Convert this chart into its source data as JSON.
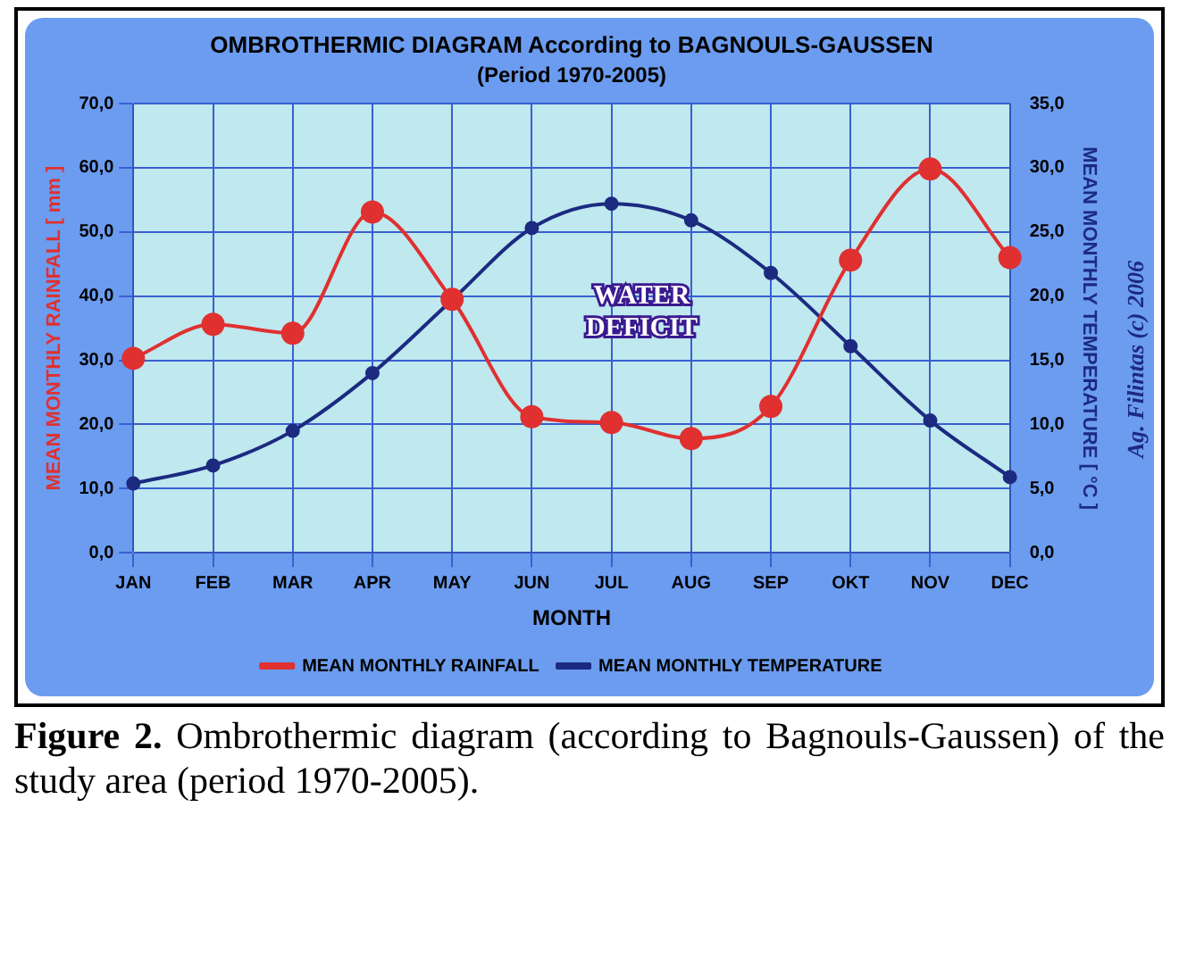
{
  "chart_data": {
    "type": "line",
    "title": "OMBROTHERMIC DIAGRAM According to BAGNOULS-GAUSSEN",
    "subtitle": "(Period 1970-2005)",
    "xlabel": "MONTH",
    "ylabel": "MEAN MONTHLY RAINFALL [ mm ]",
    "y2label": "MEAN MONTHLY TEMPERATURE [ °C ]",
    "categories": [
      "JAN",
      "FEB",
      "MAR",
      "APR",
      "MAY",
      "JUN",
      "JUL",
      "AUG",
      "SEP",
      "OKT",
      "NOV",
      "DEC"
    ],
    "series": [
      {
        "name": "MEAN MONTHLY RAINFALL",
        "color": "#e03030",
        "values": [
          30.3,
          35.6,
          34.2,
          53.1,
          39.5,
          21.2,
          20.3,
          17.8,
          22.8,
          45.6,
          59.8,
          46.0
        ]
      },
      {
        "name": "MEAN MONTHLY TEMPERATURE",
        "color": "#1c2a80",
        "axis": "y2",
        "values": [
          5.4,
          6.8,
          9.5,
          14.0,
          19.7,
          25.3,
          27.2,
          25.9,
          21.8,
          16.1,
          10.3,
          5.9
        ]
      }
    ],
    "ylim": [
      0,
      70
    ],
    "yticks": [
      {
        "value": 0,
        "label": "0,0"
      },
      {
        "value": 10,
        "label": "10,0"
      },
      {
        "value": 20,
        "label": "20,0"
      },
      {
        "value": 30,
        "label": "30,0"
      },
      {
        "value": 40,
        "label": "40,0"
      },
      {
        "value": 50,
        "label": "50,0"
      },
      {
        "value": 60,
        "label": "60,0"
      },
      {
        "value": 70,
        "label": "70,0"
      }
    ],
    "y2lim": [
      0,
      35
    ],
    "y2ticks": [
      {
        "value": 0,
        "label": "0,0"
      },
      {
        "value": 5,
        "label": "5,0"
      },
      {
        "value": 10,
        "label": "10,0"
      },
      {
        "value": 15,
        "label": "15,0"
      },
      {
        "value": 20,
        "label": "20,0"
      },
      {
        "value": 25,
        "label": "25,0"
      },
      {
        "value": 30,
        "label": "30,0"
      },
      {
        "value": 35,
        "label": "35,0"
      }
    ],
    "grid": true,
    "legend": "bottom",
    "marker": "circle",
    "line_style": "solid",
    "annotations": [
      "WATER DEFICIT",
      "Ag. Filintas (c) 2006",
      "Figure 2. Ombrothermic diagram (according to Bagnouls-Gaussen) of the study area (period 1970-2005)."
    ]
  }
}
